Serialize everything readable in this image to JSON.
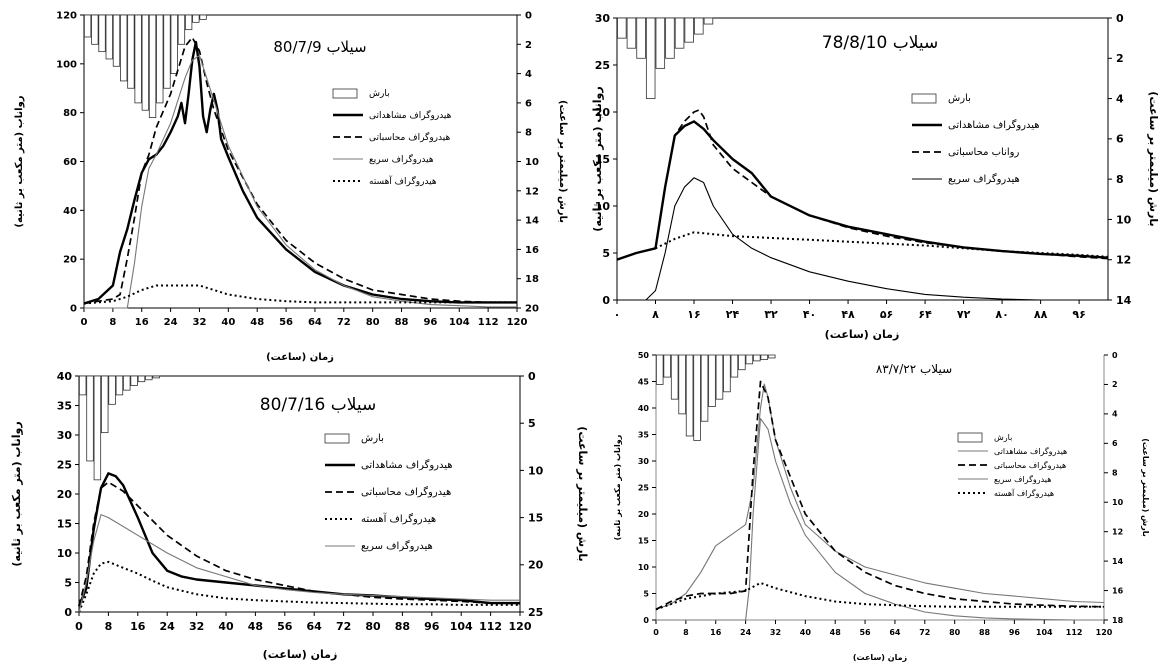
{
  "chart_data": [
    {
      "type": "line",
      "title": "سیلاب 80/7/9",
      "xlabel": "زمان (ساعت)",
      "ylabel": "رواناب (متر مکعب بر ثانیه)",
      "y2label": "بارش (میلیمتر بر ساعت)",
      "x_ticks": [
        "0",
        "8",
        "16",
        "24",
        "32",
        "40",
        "48",
        "56",
        "64",
        "72",
        "80",
        "88",
        "96",
        "104",
        "112",
        "120"
      ],
      "y_ticks": [
        "0",
        "20",
        "40",
        "60",
        "80",
        "100",
        "120"
      ],
      "y2_ticks": [
        "0",
        "2",
        "4",
        "6",
        "8",
        "10",
        "12",
        "14",
        "16",
        "18",
        "20"
      ],
      "xlim": [
        0,
        120
      ],
      "ylim": [
        0,
        130
      ],
      "y2lim": [
        0,
        20
      ],
      "rain_x": [
        1,
        3,
        5,
        7,
        9,
        11,
        13,
        15,
        17,
        19,
        21,
        23,
        25,
        27,
        29,
        31,
        33
      ],
      "rain": [
        1.5,
        2,
        2.5,
        3,
        3.5,
        4.5,
        5,
        6,
        6.5,
        7,
        6,
        5,
        4,
        2,
        1,
        0.5,
        0.3
      ],
      "legend": [
        "بارش",
        "هیدروگراف مشاهداتی",
        "هیدروگراف محاسباتی",
        "هیدروگراف سریع",
        "هیدروگراف آهسته"
      ],
      "series": [
        {
          "name": "هیدروگراف مشاهداتی",
          "style": "thick",
          "x": [
            0,
            4,
            8,
            10,
            12,
            14,
            16,
            18,
            20,
            22,
            24,
            26,
            27,
            28,
            29,
            30,
            31,
            32,
            33,
            34,
            35,
            36,
            37,
            38,
            40,
            44,
            48,
            56,
            64,
            72,
            80,
            88,
            96,
            104,
            112,
            120
          ],
          "y": [
            2,
            4,
            10,
            25,
            35,
            48,
            60,
            66,
            68,
            72,
            78,
            85,
            91,
            82,
            95,
            110,
            118,
            107,
            85,
            78,
            88,
            95,
            88,
            75,
            67,
            52,
            40,
            26,
            16,
            10,
            6,
            4,
            3,
            2.5,
            2.5,
            2.5
          ]
        },
        {
          "name": "هیدروگراف محاسباتی",
          "style": "dashed",
          "x": [
            0,
            4,
            8,
            10,
            12,
            14,
            16,
            18,
            20,
            24,
            28,
            30,
            32,
            34,
            36,
            40,
            48,
            56,
            64,
            72,
            80,
            88,
            96,
            104,
            112,
            120
          ],
          "y": [
            2,
            3,
            4,
            6,
            22,
            40,
            60,
            68,
            80,
            95,
            116,
            120,
            114,
            100,
            88,
            70,
            46,
            30,
            20,
            13,
            8,
            6,
            4,
            3,
            2.5,
            2.5
          ]
        },
        {
          "name": "هیدروگراف سریع",
          "style": "thin",
          "x": [
            0,
            12,
            14,
            16,
            18,
            20,
            24,
            28,
            30,
            32,
            36,
            40,
            48,
            56,
            64,
            72,
            80,
            88,
            96,
            104,
            112,
            120
          ],
          "y": [
            0,
            0,
            20,
            45,
            62,
            68,
            82,
            102,
            110,
            112,
            92,
            72,
            45,
            28,
            17,
            10,
            5,
            3,
            1.5,
            1,
            0.5,
            0.5
          ]
        },
        {
          "name": "هیدروگراف آهسته",
          "style": "dotted",
          "x": [
            0,
            8,
            12,
            16,
            20,
            24,
            28,
            32,
            36,
            40,
            48,
            56,
            64,
            72,
            80,
            88,
            96,
            104,
            112,
            120
          ],
          "y": [
            2,
            3,
            5,
            8,
            10,
            10,
            10,
            10,
            8,
            6,
            4,
            3,
            2.5,
            2.5,
            2.5,
            2.5,
            2.5,
            2.5,
            2.5,
            2.5
          ]
        }
      ]
    },
    {
      "type": "line",
      "title": "78/8/10 سیلاب",
      "xlabel": "زمان (ساعت)",
      "ylabel": "رواناب (متر مکعب بر ثانیه)",
      "y2label": "بارش (میلیمتر بر ساعت)",
      "x_ticks": [
        "۰",
        "۸",
        "۱۶",
        "۲۴",
        "۳۲",
        "۴۰",
        "۴۸",
        "۵۶",
        "۶۴",
        "۷۲",
        "۸۰",
        "۸۸",
        "۹۶"
      ],
      "y_ticks": [
        "0",
        "5",
        "10",
        "15",
        "20",
        "25",
        "30"
      ],
      "y2_ticks": [
        "0",
        "2",
        "4",
        "6",
        "8",
        "10",
        "12",
        "14"
      ],
      "xlim": [
        0,
        102
      ],
      "ylim": [
        0,
        30
      ],
      "y2lim": [
        0,
        14
      ],
      "rain_x": [
        1,
        3,
        5,
        7,
        9,
        11,
        13,
        15,
        17,
        19
      ],
      "rain": [
        1,
        1.5,
        2,
        4,
        2.5,
        2,
        1.5,
        1.2,
        0.8,
        0.3
      ],
      "legend": [
        "بارش",
        "هیدروگراف مشاهداتی",
        "رواناب محاسباتی",
        "هیدروگراف سریع"
      ],
      "series": [
        {
          "name": "هیدروگراف مشاهداتی",
          "style": "thick",
          "x": [
            0,
            4,
            8,
            10,
            12,
            14,
            16,
            18,
            20,
            24,
            28,
            32,
            40,
            48,
            56,
            64,
            72,
            80,
            88,
            96,
            102
          ],
          "y": [
            4.3,
            5,
            5.5,
            12,
            17.5,
            18.5,
            19,
            18.2,
            17,
            15,
            13.5,
            11,
            9,
            7.8,
            7,
            6.2,
            5.6,
            5.2,
            4.9,
            4.7,
            4.5
          ]
        },
        {
          "name": "رواناب محاسباتی",
          "style": "dashed",
          "x": [
            8,
            10,
            12,
            14,
            16,
            17,
            18,
            20,
            24,
            28,
            32,
            40,
            48,
            56,
            64,
            72,
            80,
            88,
            96,
            102
          ],
          "y": [
            5.5,
            12,
            17.5,
            19,
            20,
            20.2,
            19.5,
            16.5,
            14,
            12.5,
            11,
            9,
            7.7,
            6.8,
            6.1,
            5.6,
            5.2,
            4.9,
            4.6,
            4.4
          ]
        },
        {
          "name": "هیدروگراف سریع",
          "style": "thin",
          "x": [
            6,
            8,
            10,
            12,
            14,
            16,
            18,
            20,
            24,
            28,
            32,
            40,
            48,
            56,
            64,
            72,
            80,
            88,
            96,
            102
          ],
          "y": [
            0,
            1,
            5,
            10,
            12,
            13,
            12.5,
            10,
            7,
            5.5,
            4.5,
            3,
            2,
            1.2,
            0.6,
            0.3,
            0.1,
            0,
            0,
            0
          ]
        },
        {
          "name": "",
          "style": "dotted",
          "x": [
            8,
            12,
            16,
            20,
            24,
            32,
            40,
            48,
            56,
            64,
            72,
            80,
            88,
            96,
            102
          ],
          "y": [
            5.5,
            6.5,
            7.2,
            7,
            6.8,
            6.6,
            6.4,
            6.2,
            6,
            5.8,
            5.5,
            5.2,
            5,
            4.8,
            4.6
          ]
        }
      ]
    },
    {
      "type": "line",
      "title": "سیلاب 80/7/16",
      "xlabel": "زمان (ساعت)",
      "ylabel": "رواناب (متر مکعب بر ثانیه)",
      "y2label": "بارش (میلیمتر بر ساعت)",
      "x_ticks": [
        "0",
        "8",
        "16",
        "24",
        "32",
        "40",
        "48",
        "56",
        "64",
        "72",
        "80",
        "88",
        "96",
        "104",
        "112",
        "120"
      ],
      "y_ticks": [
        "0",
        "5",
        "10",
        "15",
        "20",
        "25",
        "30",
        "35",
        "40"
      ],
      "y2_ticks": [
        "0",
        "5",
        "10",
        "15",
        "20",
        "25"
      ],
      "xlim": [
        0,
        120
      ],
      "ylim": [
        0,
        40
      ],
      "y2lim": [
        0,
        25
      ],
      "rain_x": [
        1,
        3,
        5,
        7,
        9,
        11,
        13,
        15,
        17,
        19,
        21
      ],
      "rain": [
        2,
        9,
        11,
        6,
        3,
        2,
        1.5,
        1,
        0.6,
        0.4,
        0.2
      ],
      "legend": [
        "بارش",
        "هیدروگراف مشاهداتی",
        "هیدروگراف محاسباتی",
        "هیدروگراف آهسته",
        "هیدروگراف سریع"
      ],
      "series": [
        {
          "name": "هیدروگراف مشاهداتی",
          "style": "thick",
          "x": [
            0,
            2,
            4,
            6,
            8,
            10,
            12,
            16,
            20,
            24,
            28,
            32,
            40,
            48,
            56,
            64,
            72,
            80,
            88,
            96,
            104,
            112,
            120
          ],
          "y": [
            1,
            4,
            14,
            21,
            23.5,
            23,
            21.5,
            16,
            10,
            7,
            6,
            5.5,
            5,
            4.5,
            4,
            3.5,
            3,
            2.8,
            2.5,
            2.2,
            2,
            1.5,
            1.5
          ]
        },
        {
          "name": "هیدروگراف محاسباتی",
          "style": "dashed",
          "x": [
            0,
            2,
            4,
            6,
            8,
            12,
            16,
            20,
            24,
            32,
            40,
            48,
            56,
            64,
            72,
            80,
            88,
            96,
            104,
            112,
            120
          ],
          "y": [
            1,
            6,
            15,
            21,
            22,
            20.5,
            18,
            15.5,
            13,
            9.5,
            7,
            5.5,
            4.5,
            3.5,
            3,
            2.5,
            2.2,
            2,
            1.8,
            1.5,
            1.4
          ]
        },
        {
          "name": "هیدروگراف آهسته",
          "style": "dotted",
          "x": [
            0,
            2,
            4,
            6,
            8,
            10,
            12,
            16,
            20,
            24,
            32,
            40,
            48,
            56,
            64,
            72,
            80,
            88,
            96,
            104,
            112,
            120
          ],
          "y": [
            0,
            3,
            6.5,
            8.2,
            8.5,
            8,
            7.5,
            6.5,
            5.3,
            4.2,
            3,
            2.3,
            2,
            1.8,
            1.6,
            1.5,
            1.4,
            1.3,
            1.3,
            1.2,
            1.2,
            1.2
          ]
        },
        {
          "name": "هیدروگراف سریع",
          "style": "thin",
          "x": [
            0,
            2,
            4,
            6,
            8,
            16,
            24,
            32,
            40,
            48,
            56,
            64,
            72,
            80,
            88,
            96,
            104,
            112,
            120
          ],
          "y": [
            0,
            5,
            12,
            16.5,
            16,
            13,
            10,
            7.5,
            6,
            4.5,
            3.8,
            3.3,
            3,
            2.8,
            2.6,
            2.4,
            2.2,
            2,
            2
          ]
        }
      ]
    },
    {
      "type": "line",
      "title": "سیلاب ۸۳/۷/۲۲",
      "xlabel": "زمان (ساعت)",
      "ylabel": "رواناب (متر مکعب بر ثانیه)",
      "y2label": "بارش (میلیمتر بر ساعت)",
      "x_ticks": [
        "0",
        "8",
        "16",
        "24",
        "32",
        "40",
        "48",
        "56",
        "64",
        "72",
        "80",
        "88",
        "96",
        "104",
        "112",
        "120"
      ],
      "y_ticks": [
        "0",
        "5",
        "10",
        "15",
        "20",
        "25",
        "30",
        "35",
        "40",
        "45",
        "50"
      ],
      "y2_ticks": [
        "0",
        "2",
        "4",
        "6",
        "8",
        "10",
        "12",
        "14",
        "16",
        "18"
      ],
      "xlim": [
        0,
        120
      ],
      "ylim": [
        0,
        50
      ],
      "y2lim": [
        0,
        18
      ],
      "rain_x": [
        1,
        3,
        5,
        7,
        9,
        11,
        13,
        15,
        17,
        19,
        21,
        23,
        25,
        27,
        29,
        31
      ],
      "rain": [
        2,
        1.5,
        3,
        4,
        5.5,
        5.8,
        4.5,
        3.5,
        3,
        2.5,
        1.5,
        1,
        0.6,
        0.4,
        0.3,
        0.2
      ],
      "legend": [
        "بارش",
        "هیدروگراف مشاهداتی",
        "هیدروگراف محاسباتی",
        "هیدروگراف سریع",
        "هیدروگراف آهسته"
      ],
      "series": [
        {
          "name": "هیدروگراف مشاهداتی",
          "style": "thin",
          "x": [
            0,
            4,
            8,
            12,
            16,
            20,
            24,
            26,
            28,
            29,
            30,
            32,
            36,
            40,
            48,
            56,
            64,
            72,
            80,
            88,
            96,
            104,
            112,
            120
          ],
          "y": [
            2,
            3,
            5,
            9,
            14,
            16,
            18,
            25,
            40,
            44.5,
            42,
            34,
            25,
            18,
            13,
            10,
            8.5,
            7,
            6,
            5,
            4.5,
            4,
            3.5,
            3.3
          ]
        },
        {
          "name": "هیدروگراف محاسباتی",
          "style": "dashed",
          "x": [
            0,
            4,
            8,
            12,
            16,
            20,
            24,
            26,
            28,
            30,
            32,
            36,
            40,
            48,
            56,
            64,
            72,
            80,
            88,
            96,
            104,
            112,
            120
          ],
          "y": [
            2,
            3.5,
            4.5,
            5,
            5,
            5,
            5.5,
            28,
            45,
            42,
            34,
            27,
            20,
            13,
            9,
            6.5,
            5,
            4,
            3.5,
            3,
            2.8,
            2.6,
            2.5
          ]
        },
        {
          "name": "هیدروگراف سریع",
          "style": "thin",
          "x": [
            0,
            24,
            25,
            26,
            28,
            30,
            32,
            36,
            40,
            48,
            56,
            64,
            72,
            80,
            88,
            96,
            104,
            112,
            120
          ],
          "y": [
            0,
            0,
            6,
            20,
            38,
            36,
            30,
            22,
            16,
            9,
            5,
            3,
            1.5,
            0.8,
            0.4,
            0.2,
            0.1,
            0,
            0
          ]
        },
        {
          "name": "هیدروگراف آهسته",
          "style": "dotted",
          "x": [
            0,
            8,
            16,
            24,
            28,
            32,
            40,
            48,
            56,
            64,
            72,
            80,
            88,
            96,
            104,
            112,
            120
          ],
          "y": [
            2,
            4,
            5,
            5.5,
            7,
            6,
            4.5,
            3.5,
            3,
            2.8,
            2.6,
            2.5,
            2.5,
            2.5,
            2.5,
            2.5,
            2.5
          ]
        }
      ]
    }
  ]
}
